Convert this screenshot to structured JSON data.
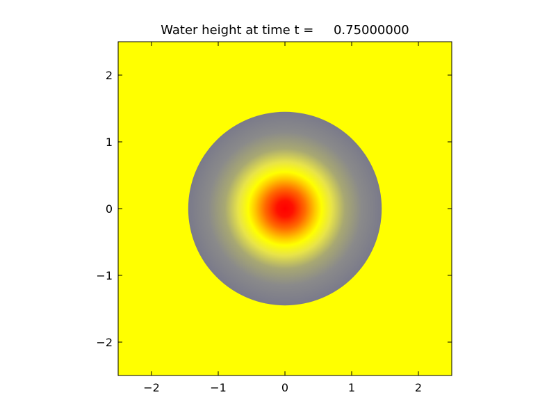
{
  "chart_data": {
    "type": "heatmap",
    "title": "Water height at time t =     0.75000000",
    "xlabel": "",
    "ylabel": "",
    "xlim": [
      -2.5,
      2.5
    ],
    "ylim": [
      -2.5,
      2.5
    ],
    "x_ticks": [
      -2,
      -1,
      0,
      1,
      2
    ],
    "y_ticks": [
      2,
      1,
      0,
      -1,
      -2
    ],
    "x_tick_labels": [
      "−2",
      "−1",
      "0",
      "1",
      "2"
    ],
    "y_tick_labels": [
      "2",
      "1",
      "0",
      "−1",
      "−2"
    ],
    "grid": false,
    "colorbar": false,
    "field": {
      "shape": "radially symmetric",
      "center": [
        0,
        0
      ],
      "outer_radius": 1.45,
      "background_color": "#ffff00",
      "radial_color_stops": [
        {
          "r": 0.0,
          "color": "#ff0000"
        },
        {
          "r": 0.12,
          "color": "#ff1000"
        },
        {
          "r": 0.3,
          "color": "#ff6a00"
        },
        {
          "r": 0.45,
          "color": "#ffc800"
        },
        {
          "r": 0.55,
          "color": "#ffff00"
        },
        {
          "r": 0.7,
          "color": "#e8e448"
        },
        {
          "r": 0.9,
          "color": "#a8a872"
        },
        {
          "r": 1.15,
          "color": "#8a8a8a"
        },
        {
          "r": 1.45,
          "color": "#7a7a8a"
        }
      ]
    }
  }
}
